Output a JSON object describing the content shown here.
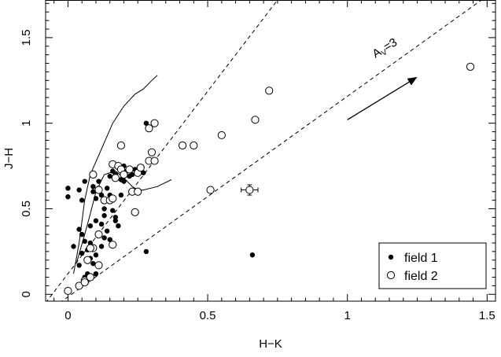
{
  "chart_data": {
    "type": "scatter",
    "title": "",
    "xlabel": "H−K",
    "ylabel": "J−H",
    "xlim": [
      -0.08,
      1.53
    ],
    "ylim": [
      -0.04,
      1.72
    ],
    "xticks": [
      0,
      0.5,
      1,
      1.5
    ],
    "yticks": [
      0,
      0.5,
      1,
      1.5
    ],
    "xtick_labels": [
      "0",
      "0.5",
      "1",
      "1.5"
    ],
    "ytick_labels": [
      "0",
      "0.5",
      "1",
      "1.5"
    ],
    "grid": false,
    "legend": {
      "position": "bottom-right",
      "entries": [
        {
          "label": "field 1",
          "marker": "filled-circle"
        },
        {
          "label": "field 2",
          "marker": "open-circle"
        }
      ]
    },
    "annotations": [
      {
        "text_main": "A",
        "text_sub": "V",
        "text_rest": "=3",
        "x": 1.1,
        "y": 1.38,
        "arrow_from": [
          1.0,
          1.02
        ],
        "arrow_to": [
          1.25,
          1.27
        ]
      }
    ],
    "reddening_lines": [
      {
        "style": "dashed",
        "from": [
          -0.08,
          -0.05
        ],
        "to": [
          0.75,
          1.72
        ]
      },
      {
        "style": "dashed",
        "from": [
          -0.03,
          -0.05
        ],
        "to": [
          1.48,
          1.72
        ]
      }
    ],
    "curves": [
      {
        "name": "giant-branch",
        "style": "solid",
        "points": [
          [
            0.02,
            0.12
          ],
          [
            0.04,
            0.3
          ],
          [
            0.06,
            0.55
          ],
          [
            0.08,
            0.7
          ],
          [
            0.12,
            0.85
          ],
          [
            0.16,
            1.0
          ],
          [
            0.2,
            1.1
          ],
          [
            0.24,
            1.17
          ],
          [
            0.27,
            1.2
          ],
          [
            0.3,
            1.25
          ],
          [
            0.32,
            1.28
          ]
        ]
      },
      {
        "name": "dwarf-branch",
        "style": "solid",
        "points": [
          [
            0.03,
            0.18
          ],
          [
            0.06,
            0.35
          ],
          [
            0.08,
            0.47
          ],
          [
            0.1,
            0.6
          ],
          [
            0.13,
            0.7
          ],
          [
            0.17,
            0.72
          ],
          [
            0.2,
            0.68
          ],
          [
            0.23,
            0.63
          ],
          [
            0.25,
            0.61
          ],
          [
            0.27,
            0.61
          ],
          [
            0.32,
            0.63
          ],
          [
            0.37,
            0.67
          ]
        ]
      }
    ],
    "error_bar_point": {
      "x": 0.65,
      "y": 0.61,
      "xerr": 0.03,
      "yerr": 0.03
    },
    "series": [
      {
        "name": "field 1",
        "marker": "filled-circle",
        "points": [
          [
            0.0,
            0.62
          ],
          [
            0.0,
            0.57
          ],
          [
            0.04,
            0.61
          ],
          [
            0.05,
            0.55
          ],
          [
            0.06,
            0.66
          ],
          [
            0.02,
            0.28
          ],
          [
            0.04,
            0.38
          ],
          [
            0.05,
            0.35
          ],
          [
            0.06,
            0.31
          ],
          [
            0.07,
            0.26
          ],
          [
            0.05,
            0.24
          ],
          [
            0.08,
            0.3
          ],
          [
            0.08,
            0.21
          ],
          [
            0.09,
            0.18
          ],
          [
            0.06,
            0.1
          ],
          [
            0.07,
            0.12
          ],
          [
            0.1,
            0.43
          ],
          [
            0.1,
            0.56
          ],
          [
            0.09,
            0.6
          ],
          [
            0.09,
            0.63
          ],
          [
            0.11,
            0.66
          ],
          [
            0.11,
            0.62
          ],
          [
            0.12,
            0.58
          ],
          [
            0.13,
            0.55
          ],
          [
            0.13,
            0.46
          ],
          [
            0.12,
            0.41
          ],
          [
            0.11,
            0.35
          ],
          [
            0.13,
            0.33
          ],
          [
            0.12,
            0.28
          ],
          [
            0.1,
            0.23
          ],
          [
            0.15,
            0.69
          ],
          [
            0.16,
            0.72
          ],
          [
            0.17,
            0.7
          ],
          [
            0.18,
            0.74
          ],
          [
            0.19,
            0.72
          ],
          [
            0.19,
            0.67
          ],
          [
            0.2,
            0.75
          ],
          [
            0.2,
            0.7
          ],
          [
            0.21,
            0.72
          ],
          [
            0.22,
            0.69
          ],
          [
            0.23,
            0.7
          ],
          [
            0.24,
            0.73
          ],
          [
            0.2,
            0.66
          ],
          [
            0.15,
            0.58
          ],
          [
            0.16,
            0.55
          ],
          [
            0.16,
            0.49
          ],
          [
            0.17,
            0.45
          ],
          [
            0.17,
            0.43
          ],
          [
            0.18,
            0.4
          ],
          [
            0.14,
            0.37
          ],
          [
            0.13,
            0.5
          ],
          [
            0.14,
            0.62
          ],
          [
            0.28,
            1.0
          ],
          [
            0.28,
            0.25
          ],
          [
            0.66,
            0.23
          ],
          [
            0.08,
            0.4
          ],
          [
            0.04,
            0.17
          ],
          [
            0.06,
            0.08
          ],
          [
            0.1,
            0.12
          ],
          [
            0.15,
            0.32
          ],
          [
            0.19,
            0.58
          ],
          [
            0.27,
            0.71
          ],
          [
            0.2,
            0.69
          ]
        ]
      },
      {
        "name": "field 2",
        "marker": "open-circle",
        "points": [
          [
            0.0,
            0.02
          ],
          [
            0.04,
            0.05
          ],
          [
            0.06,
            0.08
          ],
          [
            0.08,
            0.1
          ],
          [
            0.11,
            0.17
          ],
          [
            0.07,
            0.2
          ],
          [
            0.09,
            0.27
          ],
          [
            0.11,
            0.35
          ],
          [
            0.16,
            0.29
          ],
          [
            0.11,
            0.61
          ],
          [
            0.09,
            0.7
          ],
          [
            0.13,
            0.55
          ],
          [
            0.15,
            0.55
          ],
          [
            0.16,
            0.56
          ],
          [
            0.17,
            0.68
          ],
          [
            0.16,
            0.76
          ],
          [
            0.18,
            0.75
          ],
          [
            0.19,
            0.73
          ],
          [
            0.22,
            0.73
          ],
          [
            0.2,
            0.7
          ],
          [
            0.23,
            0.6
          ],
          [
            0.24,
            0.48
          ],
          [
            0.25,
            0.6
          ],
          [
            0.25,
            0.71
          ],
          [
            0.26,
            0.74
          ],
          [
            0.29,
            0.78
          ],
          [
            0.31,
            0.78
          ],
          [
            0.29,
            0.97
          ],
          [
            0.31,
            1.0
          ],
          [
            0.3,
            0.83
          ],
          [
            0.19,
            0.87
          ],
          [
            0.41,
            0.87
          ],
          [
            0.45,
            0.87
          ],
          [
            0.51,
            0.61
          ],
          [
            0.55,
            0.93
          ],
          [
            0.67,
            1.02
          ],
          [
            0.72,
            1.19
          ],
          [
            1.44,
            1.33
          ],
          [
            0.08,
            0.27
          ],
          [
            0.06,
            0.07
          ]
        ]
      }
    ]
  }
}
